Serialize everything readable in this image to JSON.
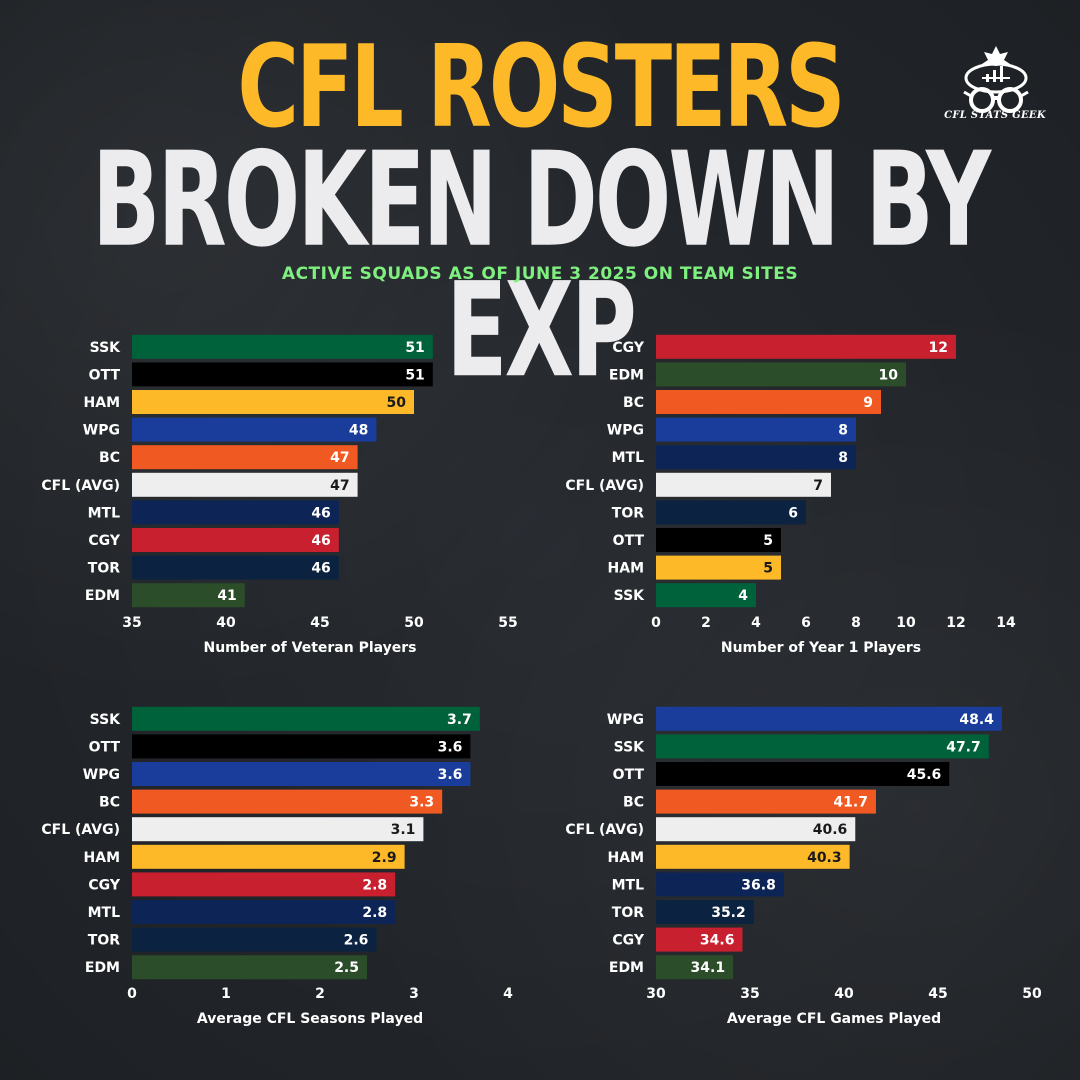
{
  "header": {
    "title_line1": "CFL ROSTERS",
    "title_line2": "BROKEN DOWN BY EXP",
    "subtitle": "ACTIVE SQUADS AS OF JUNE 3 2025 ON TEAM SITES",
    "logo_text": "CFL STATS GEEK"
  },
  "team_colors": {
    "SSK": "#00623a",
    "OTT": "#000000",
    "HAM": "#fdb927",
    "WPG": "#1a3d9c",
    "BC": "#f05a22",
    "CFL (AVG)": "#eeeeee",
    "MTL": "#0c2556",
    "CGY": "#c8202e",
    "TOR": "#0b2340",
    "EDM": "#2b4d29"
  },
  "chart_data": [
    {
      "type": "bar",
      "orientation": "horizontal",
      "categories": [
        "SSK",
        "OTT",
        "HAM",
        "WPG",
        "BC",
        "CFL (AVG)",
        "MTL",
        "CGY",
        "TOR",
        "EDM"
      ],
      "values": [
        51,
        51,
        50,
        48,
        47,
        47,
        46,
        46,
        46,
        41
      ],
      "labels": [
        "51",
        "51",
        "50",
        "48",
        "47",
        "47",
        "46",
        "46",
        "46",
        "41"
      ],
      "xlabel": "Number of Veteran Players",
      "xlim": [
        35,
        55
      ],
      "xticks": [
        35,
        40,
        45,
        50,
        55
      ],
      "grid": false
    },
    {
      "type": "bar",
      "orientation": "horizontal",
      "categories": [
        "CGY",
        "EDM",
        "BC",
        "WPG",
        "MTL",
        "CFL (AVG)",
        "TOR",
        "OTT",
        "HAM",
        "SSK"
      ],
      "values": [
        12,
        10,
        9,
        8,
        8,
        7,
        6,
        5,
        5,
        4
      ],
      "labels": [
        "12",
        "10",
        "9",
        "8",
        "8",
        "7",
        "6",
        "5",
        "5",
        "4"
      ],
      "xlabel": "Number of Year 1 Players",
      "xlim": [
        0,
        14
      ],
      "xticks": [
        0,
        2,
        4,
        6,
        8,
        10,
        12,
        14
      ],
      "grid": false
    },
    {
      "type": "bar",
      "orientation": "horizontal",
      "categories": [
        "SSK",
        "OTT",
        "WPG",
        "BC",
        "CFL (AVG)",
        "HAM",
        "CGY",
        "MTL",
        "TOR",
        "EDM"
      ],
      "values": [
        3.7,
        3.6,
        3.6,
        3.3,
        3.1,
        2.9,
        2.8,
        2.8,
        2.6,
        2.5
      ],
      "labels": [
        "3.7",
        "3.6",
        "3.6",
        "3.3",
        "3.1",
        "2.9",
        "2.8",
        "2.8",
        "2.6",
        "2.5"
      ],
      "xlabel": "Average CFL Seasons Played",
      "xlim": [
        0,
        4
      ],
      "xticks": [
        0,
        1,
        2,
        3,
        4
      ],
      "grid": false
    },
    {
      "type": "bar",
      "orientation": "horizontal",
      "categories": [
        "WPG",
        "SSK",
        "OTT",
        "BC",
        "CFL (AVG)",
        "HAM",
        "MTL",
        "TOR",
        "CGY",
        "EDM"
      ],
      "values": [
        48.4,
        47.7,
        45.6,
        41.7,
        40.6,
        40.3,
        36.8,
        35.2,
        34.6,
        34.1
      ],
      "labels": [
        "48.4",
        "47.7",
        "45.6",
        "41.7",
        "40.6",
        "40.3",
        "36.8",
        "35.2",
        "34.6",
        "34.1"
      ],
      "xlabel": "Average CFL Games Played",
      "xlim": [
        30,
        50
      ],
      "xticks": [
        30,
        35,
        40,
        45,
        50
      ],
      "grid": false
    }
  ]
}
